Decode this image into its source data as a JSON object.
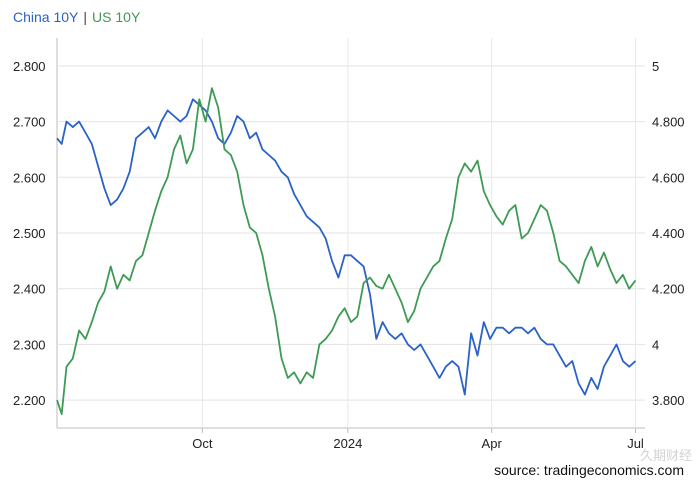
{
  "chart_data": {
    "type": "line",
    "series": [
      {
        "name": "China 10Y",
        "axis": "left",
        "color": "#2a62c9",
        "x": [
          0,
          3,
          6,
          10,
          14,
          18,
          22,
          26,
          30,
          34,
          38,
          42,
          46,
          50,
          54,
          58,
          62,
          66,
          70,
          74,
          78,
          82,
          86,
          90,
          94,
          98,
          102,
          106,
          110,
          114,
          118,
          122,
          126,
          130,
          134,
          138,
          142,
          146,
          150,
          154,
          158,
          162,
          166,
          170,
          174,
          178,
          182,
          186,
          190,
          194,
          198,
          202,
          206,
          210,
          214,
          218,
          222,
          226,
          230,
          234,
          238,
          242,
          246,
          250,
          254,
          258,
          262,
          266,
          270,
          274,
          278,
          282,
          286,
          290,
          294,
          298,
          302,
          306,
          310,
          314,
          318,
          322,
          326,
          330,
          334,
          338,
          342,
          346,
          350,
          354,
          358,
          362,
          366
        ],
        "values": [
          2.67,
          2.66,
          2.7,
          2.69,
          2.7,
          2.68,
          2.66,
          2.62,
          2.58,
          2.55,
          2.56,
          2.58,
          2.61,
          2.67,
          2.68,
          2.69,
          2.67,
          2.7,
          2.72,
          2.71,
          2.7,
          2.71,
          2.74,
          2.73,
          2.72,
          2.7,
          2.67,
          2.66,
          2.68,
          2.71,
          2.7,
          2.67,
          2.68,
          2.65,
          2.64,
          2.63,
          2.61,
          2.6,
          2.57,
          2.55,
          2.53,
          2.52,
          2.51,
          2.49,
          2.45,
          2.42,
          2.46,
          2.46,
          2.45,
          2.44,
          2.39,
          2.31,
          2.34,
          2.32,
          2.31,
          2.32,
          2.3,
          2.29,
          2.3,
          2.28,
          2.26,
          2.24,
          2.26,
          2.27,
          2.26,
          2.21,
          2.32,
          2.28,
          2.34,
          2.31,
          2.33,
          2.33,
          2.32,
          2.33,
          2.33,
          2.32,
          2.33,
          2.31,
          2.3,
          2.3,
          2.28,
          2.26,
          2.27,
          2.23,
          2.21,
          2.24,
          2.22,
          2.26,
          2.28,
          2.3,
          2.27,
          2.26,
          2.27
        ]
      },
      {
        "name": "US 10Y",
        "axis": "right",
        "color": "#3f9a55",
        "x": [
          0,
          3,
          6,
          10,
          14,
          18,
          22,
          26,
          30,
          34,
          38,
          42,
          46,
          50,
          54,
          58,
          62,
          66,
          70,
          74,
          78,
          82,
          86,
          90,
          94,
          98,
          102,
          106,
          110,
          114,
          118,
          122,
          126,
          130,
          134,
          138,
          142,
          146,
          150,
          154,
          158,
          162,
          166,
          170,
          174,
          178,
          182,
          186,
          190,
          194,
          198,
          202,
          206,
          210,
          214,
          218,
          222,
          226,
          230,
          234,
          238,
          242,
          246,
          250,
          254,
          258,
          262,
          266,
          270,
          274,
          278,
          282,
          286,
          290,
          294,
          298,
          302,
          306,
          310,
          314,
          318,
          322,
          326,
          330,
          334,
          338,
          342,
          346,
          350,
          354,
          358,
          362,
          366
        ],
        "values": [
          3.8,
          3.75,
          3.92,
          3.95,
          4.05,
          4.02,
          4.08,
          4.15,
          4.19,
          4.28,
          4.2,
          4.25,
          4.23,
          4.3,
          4.32,
          4.4,
          4.48,
          4.55,
          4.6,
          4.7,
          4.75,
          4.65,
          4.7,
          4.88,
          4.8,
          4.92,
          4.85,
          4.7,
          4.68,
          4.62,
          4.5,
          4.42,
          4.4,
          4.32,
          4.2,
          4.1,
          3.95,
          3.88,
          3.9,
          3.86,
          3.9,
          3.88,
          4.0,
          4.02,
          4.05,
          4.1,
          4.13,
          4.08,
          4.1,
          4.22,
          4.24,
          4.21,
          4.2,
          4.25,
          4.2,
          4.15,
          4.08,
          4.12,
          4.2,
          4.24,
          4.28,
          4.3,
          4.38,
          4.45,
          4.6,
          4.65,
          4.62,
          4.66,
          4.55,
          4.5,
          4.46,
          4.43,
          4.48,
          4.5,
          4.38,
          4.4,
          4.45,
          4.5,
          4.48,
          4.4,
          4.3,
          4.28,
          4.25,
          4.22,
          4.3,
          4.35,
          4.28,
          4.33,
          4.27,
          4.22,
          4.25,
          4.2,
          4.23
        ]
      }
    ],
    "left_axis": {
      "ticks": [
        "2.200",
        "2.300",
        "2.400",
        "2.500",
        "2.600",
        "2.700",
        "2.800"
      ],
      "ylim": [
        2.15,
        2.85
      ]
    },
    "right_axis": {
      "ticks": [
        "3.800",
        "4",
        "4.200",
        "4.400",
        "4.600",
        "4.800",
        "5"
      ],
      "ylim": [
        3.7,
        5.1
      ]
    },
    "x_ticks": [
      {
        "label": "Oct",
        "x": 92
      },
      {
        "label": "2024",
        "x": 184
      },
      {
        "label": "Apr",
        "x": 275
      },
      {
        "label": "Jul",
        "x": 366
      }
    ],
    "grid": true
  },
  "legend": {
    "china_label": "China 10Y",
    "separator": "|",
    "us_label": "US 10Y",
    "china_color": "#2a62c9",
    "us_color": "#3f9a55"
  },
  "source": "source: tradingeconomics.com",
  "watermark": "久期财经"
}
